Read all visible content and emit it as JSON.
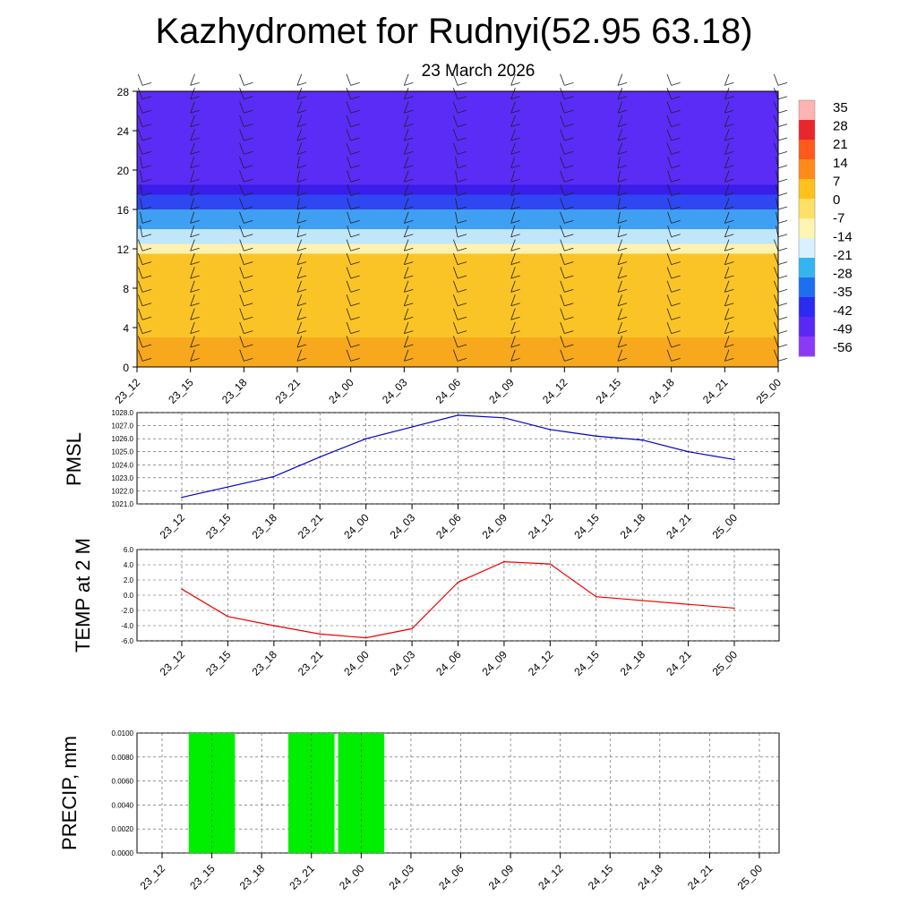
{
  "title": "Kazhydromet for Rudnyi(52.95 63.18)",
  "subtitle": "23 March 2026",
  "colorbar": {
    "labels": [
      "35",
      "28",
      "21",
      "14",
      "7",
      "0",
      "-7",
      "-14",
      "-21",
      "-28",
      "-35",
      "-42",
      "-49",
      "-56"
    ],
    "colors": [
      "#ffb3b3",
      "#e8262b",
      "#ff5a1e",
      "#ff8a1a",
      "#ffc21a",
      "#ffe066",
      "#fff4b0",
      "#d8f0ff",
      "#35b5f0",
      "#1e6ef0",
      "#2a2af0",
      "#5a28f5",
      "#8a3af7"
    ]
  },
  "chart_data": [
    {
      "type": "heatmap",
      "name": "vertical-section",
      "x": [
        "23_12",
        "23_15",
        "23_18",
        "23_21",
        "24_00",
        "24_03",
        "24_06",
        "24_09",
        "24_12",
        "24_15",
        "24_18",
        "24_21",
        "25_00"
      ],
      "y_ticks": [
        0,
        4,
        8,
        12,
        16,
        20,
        24,
        28
      ],
      "ylim": [
        0,
        28
      ],
      "bands": [
        {
          "from": 0,
          "to": 3,
          "value": 4
        },
        {
          "from": 3,
          "to": 11.5,
          "value": 1
        },
        {
          "from": 11.5,
          "to": 12.5,
          "value": -7
        },
        {
          "from": 12.5,
          "to": 14,
          "value": -18
        },
        {
          "from": 14,
          "to": 16,
          "value": -35
        },
        {
          "from": 16,
          "to": 17.5,
          "value": -50
        },
        {
          "from": 17.5,
          "to": 18.5,
          "value": -58
        },
        {
          "from": 18.5,
          "to": 28,
          "value": -56
        }
      ],
      "wind_barbs": true
    },
    {
      "type": "line",
      "name": "PMSL",
      "ylabel": "PMSL",
      "x": [
        "23_12",
        "23_15",
        "23_18",
        "23_21",
        "24_00",
        "24_03",
        "24_06",
        "24_09",
        "24_12",
        "24_15",
        "24_18",
        "24_21",
        "25_00"
      ],
      "values": [
        1021.5,
        1022.3,
        1023.1,
        1024.6,
        1026.0,
        1026.9,
        1027.8,
        1027.6,
        1026.7,
        1026.2,
        1025.9,
        1025.0,
        1024.4
      ],
      "ylim": [
        1021.0,
        1028.0
      ],
      "y_ticks": [
        "1021.0",
        "1022.0",
        "1023.0",
        "1024.0",
        "1025.0",
        "1026.0",
        "1027.0",
        "1028.0"
      ],
      "color": "#0000cc"
    },
    {
      "type": "line",
      "name": "TEMP at 2 M",
      "ylabel": "TEMP at 2 M",
      "x": [
        "23_12",
        "23_15",
        "23_18",
        "23_21",
        "24_00",
        "24_03",
        "24_06",
        "24_09",
        "24_12",
        "24_15",
        "24_18",
        "24_21",
        "25_00"
      ],
      "values": [
        0.8,
        -2.8,
        -4.0,
        -5.1,
        -5.6,
        -4.4,
        1.7,
        4.4,
        4.1,
        -0.2,
        -0.7,
        -1.2,
        -1.7
      ],
      "ylim": [
        -6.0,
        6.0
      ],
      "y_ticks": [
        "-6.0",
        "-4.0",
        "-2.0",
        "0.0",
        "2.0",
        "4.0",
        "6.0"
      ],
      "color": "#ee0000"
    },
    {
      "type": "bar",
      "name": "PRECIP, mm",
      "ylabel": "PRECIP, mm",
      "x": [
        "23_12",
        "23_15",
        "23_18",
        "23_21",
        "24_00",
        "24_03",
        "24_06",
        "24_09",
        "24_12",
        "24_15",
        "24_18",
        "24_21",
        "25_00"
      ],
      "bars": [
        {
          "center": "23_15",
          "value": 0.01
        },
        {
          "center": "23_21",
          "value": 0.01
        },
        {
          "center": "24_00",
          "value": 0.01
        }
      ],
      "ylim": [
        0.0,
        0.01
      ],
      "y_ticks": [
        "0.0000",
        "0.0020",
        "0.0040",
        "0.0060",
        "0.0080",
        "0.0100"
      ],
      "color": "#00ee00"
    }
  ]
}
